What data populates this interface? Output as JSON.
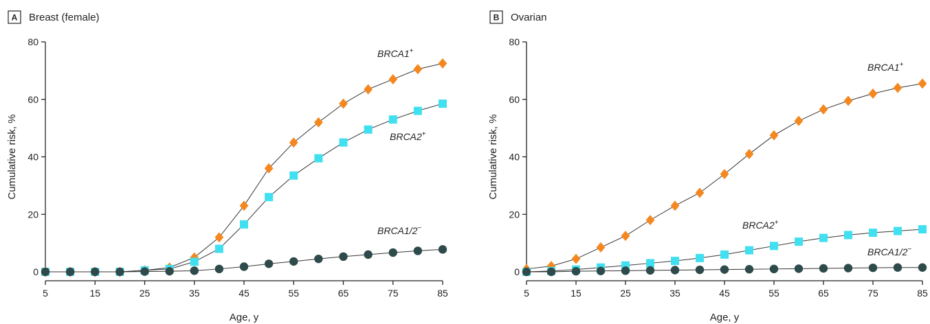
{
  "chart_data": [
    {
      "type": "line",
      "panel_letter": "A",
      "title": "Breast (female)",
      "xlabel": "Age, y",
      "ylabel": "Cumulative risk, %",
      "xlim": [
        5,
        85
      ],
      "ylim": [
        0,
        80
      ],
      "xticks": [
        5,
        15,
        25,
        35,
        45,
        55,
        65,
        75,
        85
      ],
      "yticks": [
        0,
        20,
        40,
        60,
        80
      ],
      "x": [
        5,
        10,
        15,
        20,
        25,
        30,
        35,
        40,
        45,
        50,
        55,
        60,
        65,
        70,
        75,
        80,
        85
      ],
      "series": [
        {
          "name": "BRCA1",
          "sup": "+",
          "marker": "diamond",
          "color": "#f5871f",
          "values": [
            0,
            0,
            0,
            0,
            0.5,
            1.5,
            5,
            12,
            23,
            36,
            45,
            52,
            58.5,
            63.5,
            67,
            70.5,
            72.5
          ]
        },
        {
          "name": "BRCA2",
          "sup": "+",
          "marker": "square",
          "color": "#40e0f0",
          "values": [
            0,
            0,
            0,
            0,
            0.5,
            1,
            3.5,
            8,
            16.5,
            26,
            33.5,
            39.5,
            45,
            49.5,
            53,
            56,
            58.5
          ]
        },
        {
          "name": "BRCA1/2",
          "sup": "−",
          "marker": "circle",
          "color": "#2e4a4a",
          "values": [
            0,
            0,
            0,
            0,
            0.1,
            0.2,
            0.4,
            1,
            1.8,
            2.8,
            3.6,
            4.5,
            5.3,
            6,
            6.7,
            7.3,
            7.8
          ]
        }
      ]
    },
    {
      "type": "line",
      "panel_letter": "B",
      "title": "Ovarian",
      "xlabel": "Age, y",
      "ylabel": "Cumulative risk, %",
      "xlim": [
        5,
        85
      ],
      "ylim": [
        0,
        80
      ],
      "xticks": [
        5,
        15,
        25,
        35,
        45,
        55,
        65,
        75,
        85
      ],
      "yticks": [
        0,
        20,
        40,
        60,
        80
      ],
      "x": [
        5,
        10,
        15,
        20,
        25,
        30,
        35,
        40,
        45,
        50,
        55,
        60,
        65,
        70,
        75,
        80,
        85
      ],
      "series": [
        {
          "name": "BRCA1",
          "sup": "+",
          "marker": "diamond",
          "color": "#f5871f",
          "values": [
            1,
            2,
            4.5,
            8.5,
            12.5,
            18,
            23,
            27.5,
            34,
            41,
            47.5,
            52.5,
            56.5,
            59.5,
            62,
            64,
            65.5
          ]
        },
        {
          "name": "BRCA2",
          "sup": "+",
          "marker": "square",
          "color": "#40e0f0",
          "values": [
            0,
            0.3,
            0.8,
            1.5,
            2.2,
            3,
            3.8,
            4.8,
            6,
            7.5,
            9,
            10.5,
            11.8,
            12.8,
            13.6,
            14.2,
            14.8
          ]
        },
        {
          "name": "BRCA1/2",
          "sup": "−",
          "marker": "circle",
          "color": "#2e4a4a",
          "values": [
            0,
            0,
            0.2,
            0.3,
            0.4,
            0.5,
            0.6,
            0.7,
            0.8,
            0.9,
            1,
            1.1,
            1.2,
            1.3,
            1.4,
            1.5,
            1.5
          ]
        }
      ]
    }
  ]
}
